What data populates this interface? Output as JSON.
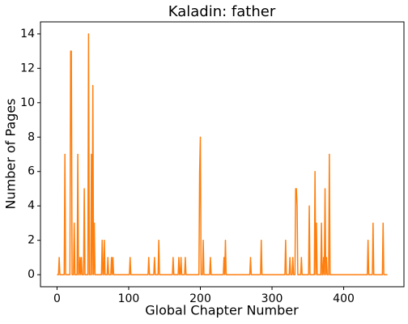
{
  "chart_data": {
    "type": "line",
    "title": "Kaladin: father",
    "xlabel": "Global Chapter Number",
    "ylabel": "Number of Pages",
    "series": [
      {
        "name": "father",
        "color": "#ff7f0e",
        "x": [
          0,
          2,
          3,
          4,
          10,
          11,
          12,
          18,
          19,
          20,
          21,
          23,
          24,
          25,
          28,
          29,
          30,
          31,
          32,
          33,
          34,
          35,
          37,
          38,
          39,
          43,
          44,
          45,
          47,
          48,
          49,
          50,
          51,
          52,
          53,
          62,
          63,
          64,
          65,
          66,
          67,
          70,
          71,
          72,
          75,
          76,
          77,
          78,
          79,
          101,
          102,
          103,
          127,
          128,
          129,
          135,
          136,
          137,
          141,
          142,
          143,
          161,
          162,
          163,
          169,
          170,
          171,
          172,
          173,
          174,
          178,
          179,
          180,
          198,
          199,
          200,
          201,
          203,
          204,
          205,
          213,
          214,
          215,
          232,
          233,
          234,
          235,
          236,
          269,
          270,
          271,
          284,
          285,
          286,
          318,
          319,
          320,
          324,
          325,
          326,
          328,
          329,
          330,
          332,
          333,
          334,
          335,
          336,
          340,
          341,
          342,
          351,
          352,
          353,
          359,
          360,
          361,
          362,
          363,
          368,
          369,
          370,
          371,
          372,
          373,
          374,
          375,
          376,
          377,
          379,
          380,
          381,
          433,
          434,
          435,
          440,
          441,
          442,
          454,
          455,
          456,
          461
        ],
        "values": [
          0,
          0,
          1,
          0,
          0,
          7,
          0,
          0,
          13,
          13,
          0,
          0,
          3,
          0,
          0,
          7,
          0,
          0,
          1,
          0,
          1,
          0,
          0,
          5,
          0,
          0,
          14,
          0,
          0,
          7,
          0,
          11,
          0,
          3,
          0,
          0,
          2,
          0,
          0,
          2,
          0,
          0,
          1,
          0,
          0,
          1,
          0,
          1,
          0,
          0,
          1,
          0,
          0,
          1,
          0,
          0,
          1,
          0,
          0,
          2,
          0,
          0,
          1,
          0,
          0,
          1,
          0,
          0,
          1,
          0,
          0,
          1,
          0,
          0,
          6,
          8,
          0,
          0,
          2,
          0,
          0,
          1,
          0,
          0,
          1,
          0,
          2,
          0,
          0,
          1,
          0,
          0,
          2,
          0,
          0,
          2,
          0,
          0,
          1,
          0,
          0,
          1,
          0,
          0,
          5,
          5,
          4,
          0,
          0,
          1,
          0,
          0,
          4,
          0,
          0,
          6,
          0,
          3,
          0,
          0,
          3,
          0,
          0,
          1,
          0,
          5,
          0,
          1,
          0,
          0,
          7,
          0,
          0,
          2,
          0,
          0,
          3,
          0,
          0,
          3,
          0,
          0
        ]
      }
    ],
    "xlim": [
      -23.1,
      484.1
    ],
    "xticks": [
      0,
      100,
      200,
      300,
      400
    ],
    "ylim": [
      -0.7,
      14.7
    ],
    "yticks": [
      0,
      2,
      4,
      6,
      8,
      10,
      12,
      14
    ],
    "grid": false
  }
}
